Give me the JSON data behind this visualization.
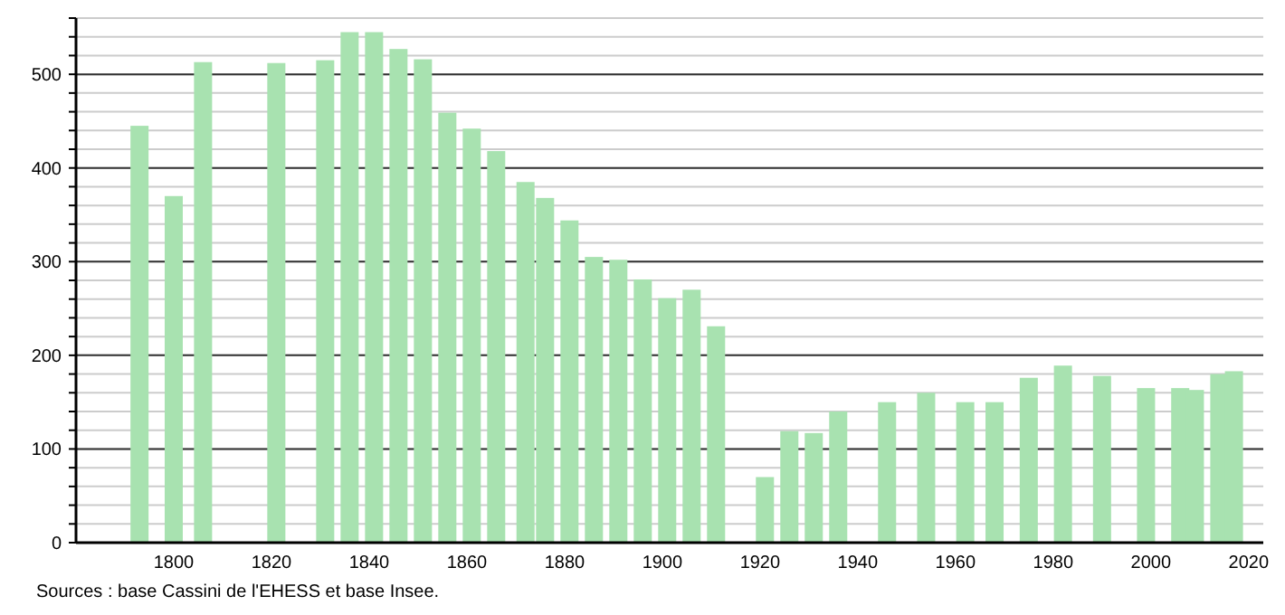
{
  "chart_data": {
    "type": "bar",
    "x": [
      1793,
      1800,
      1806,
      1821,
      1831,
      1836,
      1841,
      1846,
      1851,
      1856,
      1861,
      1866,
      1872,
      1876,
      1881,
      1886,
      1891,
      1896,
      1901,
      1906,
      1911,
      1921,
      1926,
      1931,
      1936,
      1946,
      1954,
      1962,
      1968,
      1975,
      1982,
      1990,
      1999,
      2006,
      2009,
      2014,
      2017
    ],
    "values": [
      445,
      370,
      513,
      512,
      515,
      545,
      545,
      527,
      516,
      459,
      442,
      418,
      385,
      368,
      344,
      305,
      302,
      281,
      261,
      270,
      231,
      70,
      119,
      117,
      140,
      150,
      160,
      150,
      150,
      176,
      189,
      178,
      165,
      165,
      163,
      180,
      183
    ],
    "color": "#a8e2b0",
    "xlim": [
      1780,
      2023
    ],
    "xticks": [
      1800,
      1820,
      1840,
      1860,
      1880,
      1900,
      1920,
      1940,
      1960,
      1980,
      2000,
      2020
    ],
    "ylim": [
      0,
      560
    ],
    "yticks": [
      0,
      100,
      200,
      300,
      400,
      500
    ],
    "grid": "y",
    "annotations": [
      "Sources : base Cassini de l'EHESS et base Insee."
    ]
  }
}
